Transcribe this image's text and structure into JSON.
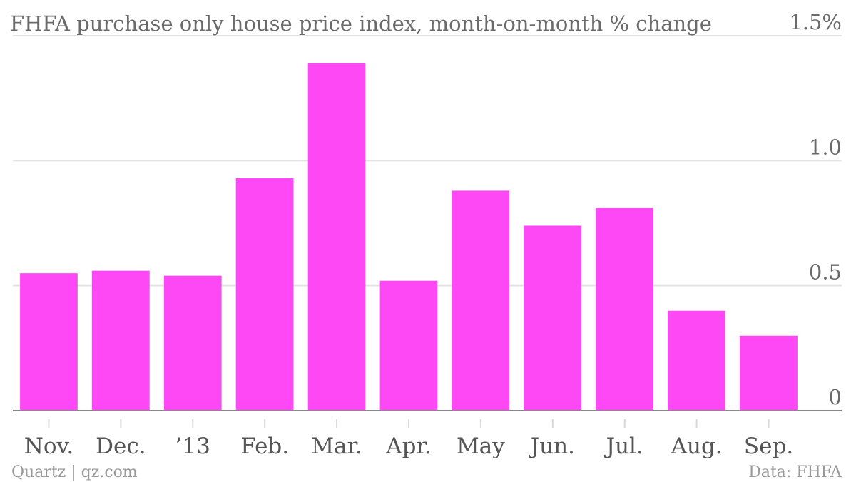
{
  "chart_data": {
    "type": "bar",
    "title": "FHFA purchase only house price index, month-on-month % change",
    "categories": [
      "Nov.",
      "Dec.",
      "’13",
      "Feb.",
      "Mar.",
      "Apr.",
      "May",
      "Jun.",
      "Jul.",
      "Aug.",
      "Sep."
    ],
    "values": [
      0.55,
      0.56,
      0.54,
      0.93,
      1.39,
      0.52,
      0.88,
      0.74,
      0.81,
      0.4,
      0.3
    ],
    "ylim": [
      0,
      1.5
    ],
    "y_ticks": [
      {
        "value": 0,
        "label": "0"
      },
      {
        "value": 0.5,
        "label": "0.5"
      },
      {
        "value": 1.0,
        "label": "1.0"
      },
      {
        "value": 1.5,
        "label": "1.5%"
      }
    ],
    "y_axis_position": "right",
    "grid": true,
    "bar_color": "#ff48f5"
  },
  "footer": {
    "source_left": "Quartz | qz.com",
    "source_right": "Data: FHFA"
  }
}
